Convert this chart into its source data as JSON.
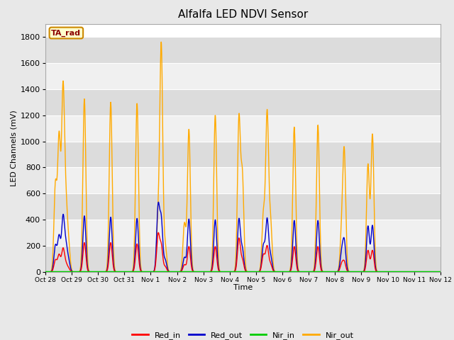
{
  "title": "Alfalfa LED NDVI Sensor",
  "ylabel": "LED Channels (mV)",
  "xlabel": "Time",
  "ylim": [
    0,
    1900
  ],
  "yticks": [
    0,
    200,
    400,
    600,
    800,
    1000,
    1200,
    1400,
    1600,
    1800
  ],
  "xtick_labels": [
    "Oct 28",
    "Oct 29",
    "Oct 30",
    "Oct 31",
    "Nov 1",
    "Nov 2",
    "Nov 3",
    "Nov 4",
    "Nov 5",
    "Nov 6",
    "Nov 7",
    "Nov 8",
    "Nov 9",
    "Nov 10",
    "Nov 11",
    "Nov 12"
  ],
  "colors": {
    "Red_in": "#ff0000",
    "Red_out": "#0000cc",
    "Nir_in": "#00cc00",
    "Nir_out": "#ffaa00"
  },
  "legend_label": "TA_rad",
  "fig_bg": "#e8e8e8",
  "plot_bg": "#ffffff",
  "band_color_dark": "#dcdcdc",
  "band_color_light": "#f0f0f0",
  "grid_color": "#cccccc",
  "peaks": [
    {
      "day": 0.38,
      "red_in": 90,
      "red_out": 200,
      "nir_in": 3,
      "nir_out": 660
    },
    {
      "day": 0.52,
      "red_in": 130,
      "red_out": 270,
      "nir_in": 3,
      "nir_out": 1020
    },
    {
      "day": 0.67,
      "red_in": 175,
      "red_out": 410,
      "nir_in": 3,
      "nir_out": 1375
    },
    {
      "day": 0.78,
      "red_in": 55,
      "red_out": 180,
      "nir_in": 3,
      "nir_out": 460
    },
    {
      "day": 0.88,
      "red_in": 25,
      "red_out": 80,
      "nir_in": 3,
      "nir_out": 200
    },
    {
      "day": 1.48,
      "red_in": 225,
      "red_out": 430,
      "nir_in": 3,
      "nir_out": 1325
    },
    {
      "day": 2.48,
      "red_in": 225,
      "red_out": 420,
      "nir_in": 3,
      "nir_out": 1300
    },
    {
      "day": 3.48,
      "red_in": 215,
      "red_out": 410,
      "nir_in": 3,
      "nir_out": 1290
    },
    {
      "day": 4.28,
      "red_in": 280,
      "red_out": 490,
      "nir_in": 3,
      "nir_out": 380
    },
    {
      "day": 4.4,
      "red_in": 195,
      "red_out": 390,
      "nir_in": 3,
      "nir_out": 1720
    },
    {
      "day": 4.55,
      "red_in": 40,
      "red_out": 90,
      "nir_in": 3,
      "nir_out": 200
    },
    {
      "day": 5.28,
      "red_in": 55,
      "red_out": 110,
      "nir_in": 3,
      "nir_out": 370
    },
    {
      "day": 5.45,
      "red_in": 195,
      "red_out": 405,
      "nir_in": 3,
      "nir_out": 1090
    },
    {
      "day": 6.45,
      "red_in": 195,
      "red_out": 400,
      "nir_in": 3,
      "nir_out": 1200
    },
    {
      "day": 7.35,
      "red_in": 255,
      "red_out": 400,
      "nir_in": 3,
      "nir_out": 1165
    },
    {
      "day": 7.48,
      "red_in": 90,
      "red_out": 170,
      "nir_in": 3,
      "nir_out": 720
    },
    {
      "day": 8.28,
      "red_in": 130,
      "red_out": 200,
      "nir_in": 3,
      "nir_out": 440
    },
    {
      "day": 8.42,
      "red_in": 195,
      "red_out": 400,
      "nir_in": 3,
      "nir_out": 1205
    },
    {
      "day": 8.55,
      "red_in": 60,
      "red_out": 120,
      "nir_in": 3,
      "nir_out": 380
    },
    {
      "day": 9.45,
      "red_in": 195,
      "red_out": 395,
      "nir_in": 3,
      "nir_out": 1110
    },
    {
      "day": 10.35,
      "red_in": 195,
      "red_out": 395,
      "nir_in": 3,
      "nir_out": 1125
    },
    {
      "day": 11.25,
      "red_in": 60,
      "red_out": 140,
      "nir_in": 3,
      "nir_out": 285
    },
    {
      "day": 11.35,
      "red_in": 75,
      "red_out": 230,
      "nir_in": 3,
      "nir_out": 900
    },
    {
      "day": 12.25,
      "red_in": 165,
      "red_out": 350,
      "nir_in": 3,
      "nir_out": 820
    },
    {
      "day": 12.42,
      "red_in": 165,
      "red_out": 355,
      "nir_in": 3,
      "nir_out": 1050
    }
  ],
  "sigma": 0.055
}
